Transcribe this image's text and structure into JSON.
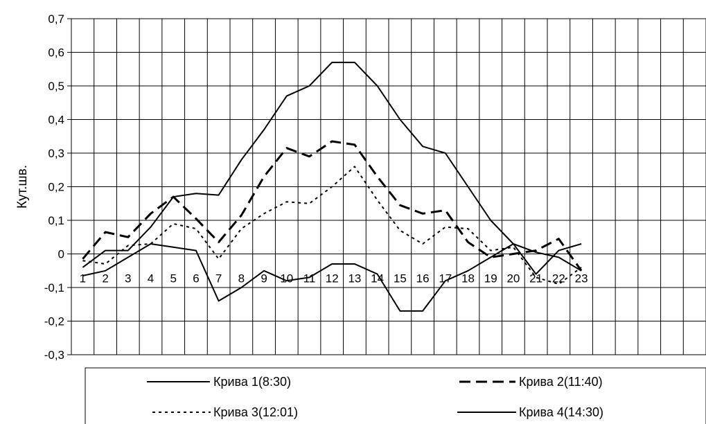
{
  "chart_data": {
    "type": "line",
    "title": "",
    "xlabel": "",
    "ylabel": "Кут.шв.",
    "x": [
      1,
      2,
      3,
      4,
      5,
      6,
      7,
      8,
      9,
      10,
      11,
      12,
      13,
      14,
      15,
      16,
      17,
      18,
      19,
      20,
      21,
      22,
      23
    ],
    "xtick_labels": [
      "1",
      "2",
      "3",
      "4",
      "5",
      "6",
      "7",
      "8",
      "9",
      "10",
      "11",
      "12",
      "13",
      "14",
      "15",
      "16",
      "17",
      "18",
      "19",
      "20",
      "21",
      "22",
      "23"
    ],
    "ylim": [
      -0.3,
      0.7
    ],
    "yticks": [
      0.7,
      0.6,
      0.5,
      0.4,
      0.3,
      0.2,
      0.1,
      0,
      -0.1,
      -0.2,
      -0.3
    ],
    "ytick_labels": [
      "0,7",
      "0,6",
      "0,5",
      "0,4",
      "0,3",
      "0,2",
      "0,1",
      "0",
      "-0,1",
      "-0,2",
      "-0,3"
    ],
    "grid": true,
    "legend_position": "bottom",
    "series": [
      {
        "name": "Крива 1(8:30)",
        "style": "solid",
        "values": [
          -0.04,
          0.01,
          0.01,
          0.08,
          0.17,
          0.18,
          0.175,
          0.28,
          0.37,
          0.47,
          0.5,
          0.57,
          0.57,
          0.5,
          0.4,
          0.32,
          0.3,
          0.2,
          0.1,
          0.03,
          -0.06,
          0.01,
          0.03
        ]
      },
      {
        "name": "Крива 2(11:40)",
        "style": "dashed",
        "values": [
          -0.015,
          0.065,
          0.05,
          0.12,
          0.17,
          0.105,
          0.035,
          0.115,
          0.23,
          0.315,
          0.29,
          0.335,
          0.325,
          0.23,
          0.145,
          0.12,
          0.13,
          0.035,
          -0.01,
          0.0,
          0.01,
          0.045,
          -0.05
        ]
      },
      {
        "name": "Крива 3(12:01)",
        "style": "dotted",
        "values": [
          -0.02,
          -0.03,
          0.025,
          0.03,
          0.09,
          0.075,
          -0.015,
          0.075,
          0.12,
          0.155,
          0.15,
          0.2,
          0.26,
          0.16,
          0.07,
          0.03,
          0.08,
          0.075,
          0.01,
          0.02,
          -0.07,
          -0.09,
          -0.04
        ]
      },
      {
        "name": "Крива 4(14:30)",
        "style": "solid",
        "values": [
          -0.065,
          -0.05,
          -0.01,
          0.03,
          0.02,
          0.01,
          -0.14,
          -0.1,
          -0.05,
          -0.08,
          -0.07,
          -0.03,
          -0.03,
          -0.06,
          -0.17,
          -0.17,
          -0.08,
          -0.05,
          -0.01,
          0.03,
          0.005,
          -0.01,
          -0.05
        ]
      }
    ]
  },
  "colors": {
    "line": "#000000",
    "grid": "#000000",
    "background": "#ffffff"
  }
}
